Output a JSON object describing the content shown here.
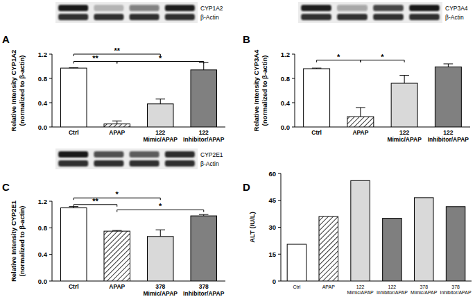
{
  "chart_data": [
    {
      "type": "bar",
      "panel": "A",
      "blot_labels": [
        "CYP1A2",
        "β-Actin"
      ],
      "y_label": [
        "Relative Intensity CYP1A2",
        "(normalized to β-actin)"
      ],
      "categories": [
        "Ctrl",
        "APAP",
        "122 Mimic/APAP",
        "122 Inhibitor/APAP"
      ],
      "values": [
        0.97,
        0.05,
        0.38,
        0.94
      ],
      "errors": [
        0.005,
        0.05,
        0.08,
        0.12
      ],
      "colors": [
        "#ffffff",
        "#ffffff",
        "#d9d9d9",
        "#808080"
      ],
      "ylim": [
        0,
        1.2
      ],
      "yticks": [
        {
          "value": 0,
          "label": "0.0"
        },
        0.4,
        0.8,
        1.2
      ],
      "annotations": [
        {
          "text": "**",
          "from": 0,
          "to": 2,
          "y": 1.2
        },
        {
          "text": "**",
          "from": 0,
          "to": 1,
          "y": 1.08
        },
        {
          "text": "*",
          "from": 1,
          "to": 3,
          "y": 1.08
        }
      ]
    },
    {
      "type": "bar",
      "panel": "B",
      "blot_labels": [
        "CYP3A4",
        "β-Actin"
      ],
      "y_label": [
        "Relative Intensity CYP3A4",
        "(normalized to β-actin)"
      ],
      "categories": [
        "Ctrl",
        "APAP",
        "122 Mimic/APAP",
        "122 Inhibitor/APAP"
      ],
      "values": [
        0.96,
        0.17,
        0.72,
        0.99
      ],
      "errors": [
        0.01,
        0.15,
        0.13,
        0.05
      ],
      "colors": [
        "#ffffff",
        "#ffffff",
        "#d9d9d9",
        "#808080"
      ],
      "ylim": [
        0,
        1.2
      ],
      "yticks": [
        {
          "value": 0,
          "label": "0.0"
        },
        0.4,
        0.8,
        1.2
      ],
      "annotations": [
        {
          "text": "*",
          "from": 0,
          "to": 1,
          "y": 1.1
        },
        {
          "text": "*",
          "from": 1,
          "to": 2,
          "y": 1.1
        }
      ]
    },
    {
      "type": "bar",
      "panel": "C",
      "blot_labels": [
        "CYP2E1",
        "β-Actin"
      ],
      "y_label": [
        "Relative Intensity CYP2E1",
        "(normalized to β-actin)"
      ],
      "categories": [
        "Ctrl",
        "APAP",
        "378 Mimic/APAP",
        "378 Inhibitor/APAP"
      ],
      "values": [
        1.1,
        0.75,
        0.67,
        0.98
      ],
      "errors": [
        0.02,
        0.01,
        0.1,
        0.02
      ],
      "colors": [
        "#ffffff",
        "#ffffff",
        "#d9d9d9",
        "#808080"
      ],
      "ylim": [
        0,
        1.2
      ],
      "yticks": [
        {
          "value": 0,
          "label": "0.0"
        },
        0.4,
        0.8,
        1.2
      ],
      "annotations": [
        {
          "text": "*",
          "from": 0,
          "to": 2,
          "y": 1.25
        },
        {
          "text": "**",
          "from": 0,
          "to": 1,
          "y": 1.15
        },
        {
          "text": "*",
          "from": 1,
          "to": 3,
          "y": 1.07
        }
      ]
    },
    {
      "type": "bar",
      "panel": "D",
      "y_label": [
        "ALT (IU/L)"
      ],
      "categories": [
        "Ctrl",
        "APAP",
        "122 Mimic/APAP",
        "122 Inhibitor/APAP",
        "378 Mimic/APAP",
        "378 Inhibitor/APAP"
      ],
      "values": [
        20.5,
        36,
        56,
        35,
        46.5,
        41.5
      ],
      "colors": [
        "#ffffff",
        "#ffffff",
        "#d9d9d9",
        "#7f7f7f",
        "#d9d9d9",
        "#7f7f7f"
      ],
      "ylim": [
        0,
        60
      ],
      "yticks": [
        0,
        15,
        30,
        45,
        60
      ]
    }
  ]
}
